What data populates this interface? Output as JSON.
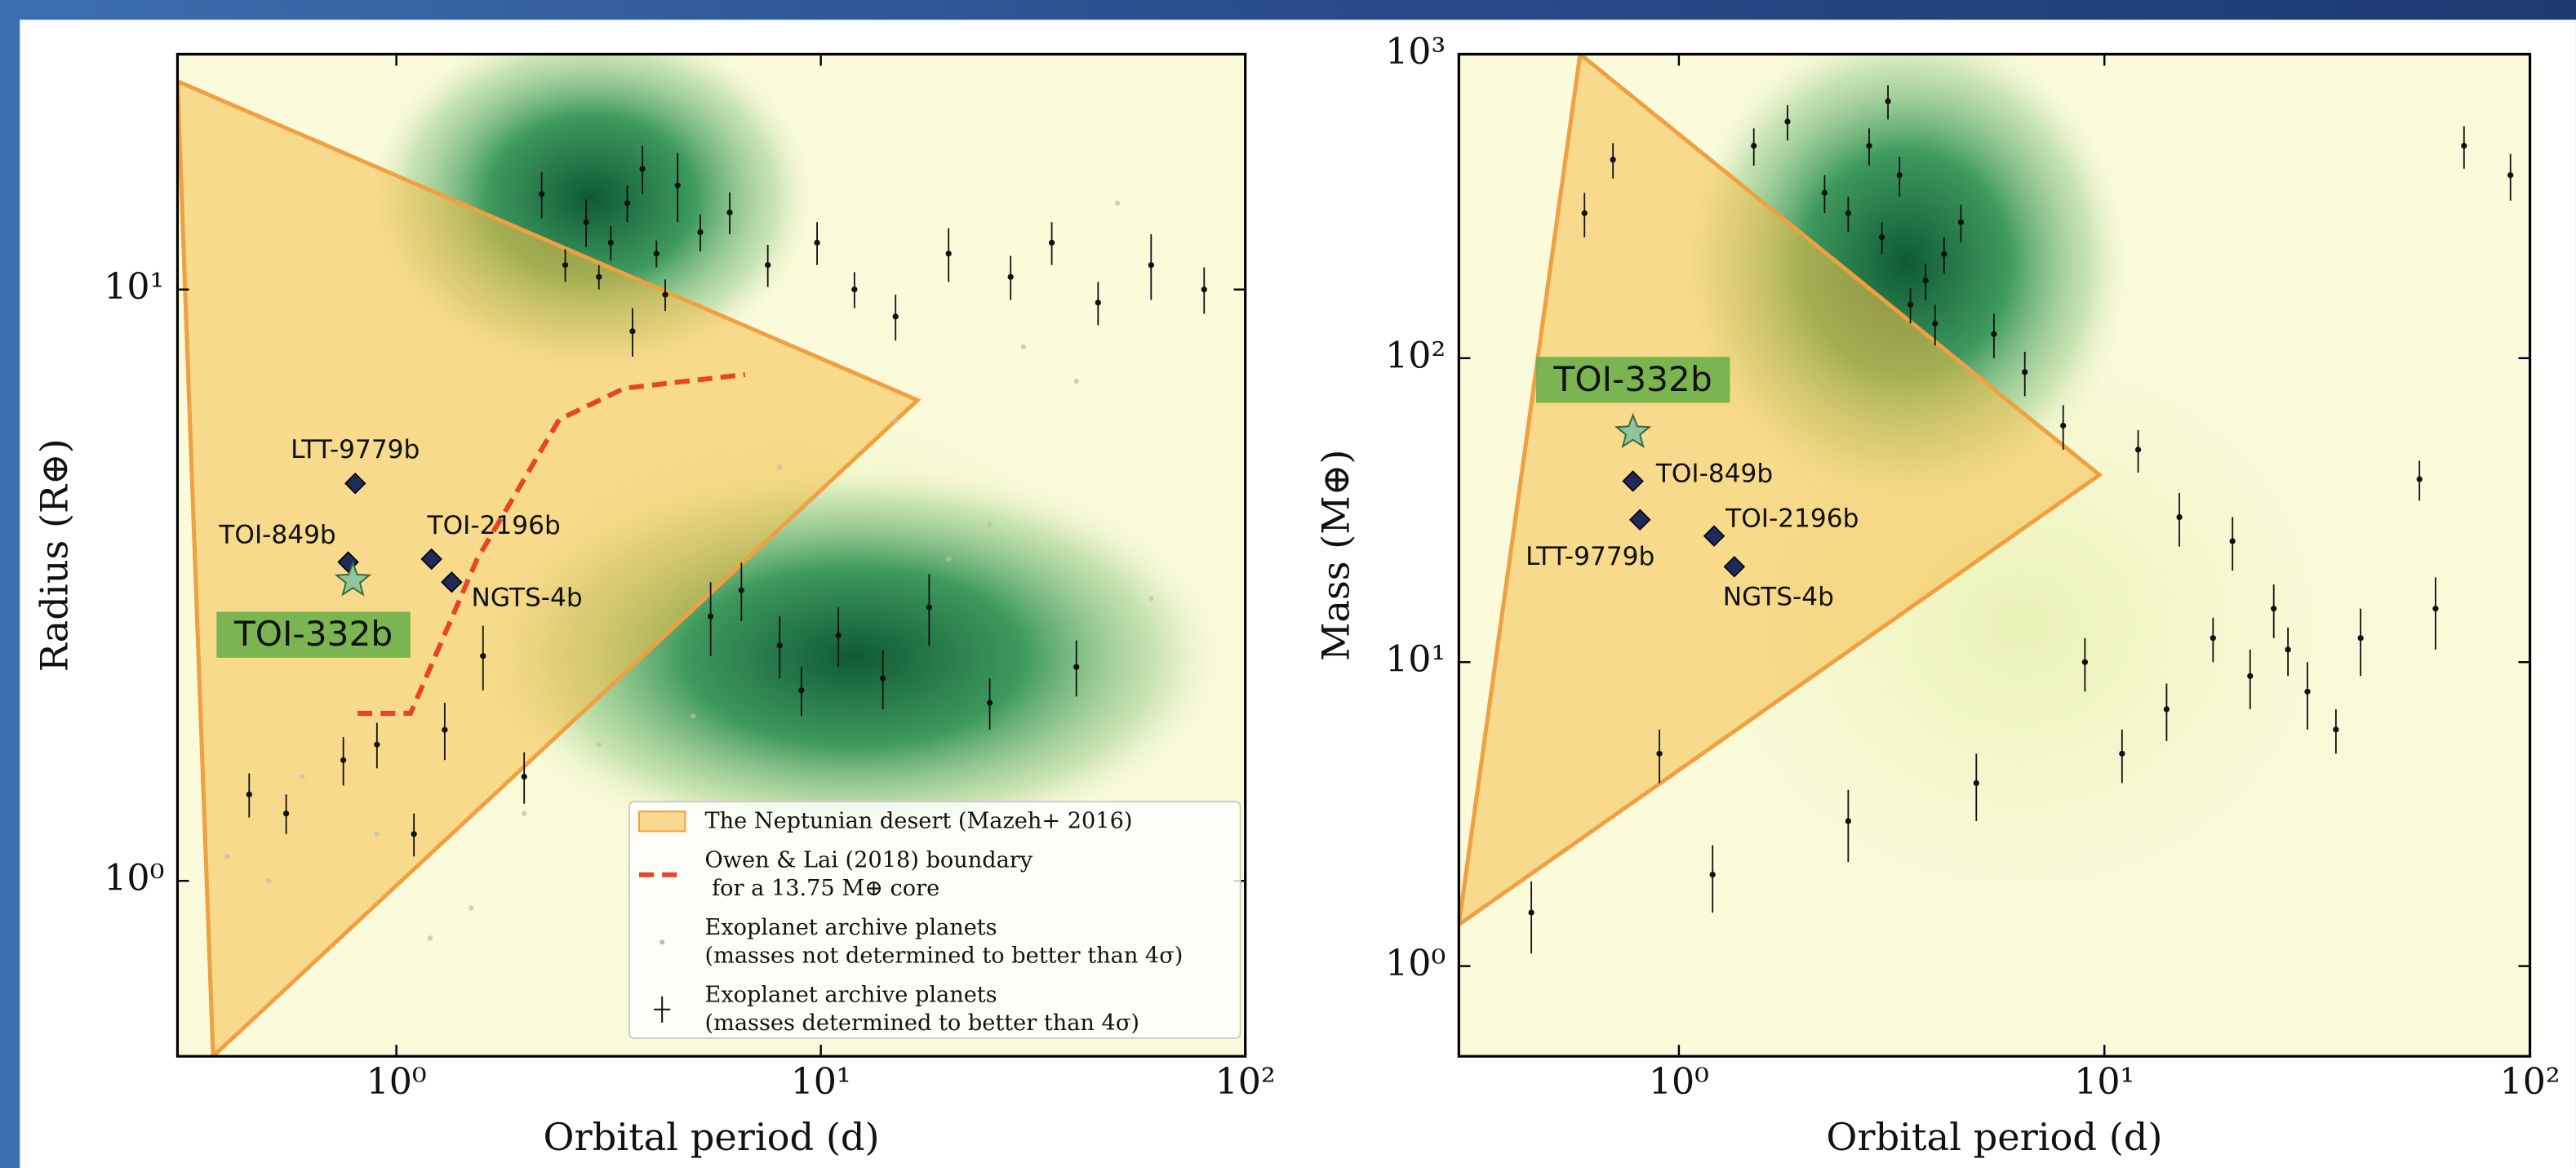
{
  "chart_data": [
    {
      "type": "scatter",
      "xlabel": "Orbital period (d)",
      "ylabel": "Radius (R⊕)",
      "xscale": "log",
      "yscale": "log",
      "xlim": [
        0.305,
        100
      ],
      "ylim": [
        0.505,
        25
      ],
      "xticks": [
        {
          "value": 1,
          "label": "10⁰"
        },
        {
          "value": 10,
          "label": "10¹"
        },
        {
          "value": 100,
          "label": "10²"
        }
      ],
      "yticks": [
        {
          "value": 1,
          "label": "10⁰"
        },
        {
          "value": 10,
          "label": "10¹"
        }
      ],
      "legend": "lower right",
      "regions": [
        {
          "name": "The Neptunian desert (Mazeh+ 2016)",
          "color": "#f5c04a",
          "x": [
            0.305,
            16.9,
            0.37
          ],
          "y": [
            22.5,
            6.5,
            0.505
          ]
        }
      ],
      "lines": [
        {
          "name": "Owen & Lai (2018) boundary\n for a 13.75 M⊕ core",
          "color": "#e8432b",
          "x": [
            0.81,
            1.08,
            1.55,
            2.42,
            3.45,
            6.63
          ],
          "y": [
            1.92,
            1.92,
            3.5,
            6.03,
            6.81,
            7.18
          ]
        }
      ],
      "series": [
        {
          "name": "Exoplanet archive planets\n(masses not determined to better than 4σ)",
          "color": "#bdbdae",
          "x": [
            0.5,
            0.6,
            0.9,
            1.5,
            2,
            3,
            5,
            8,
            15,
            25,
            40,
            60,
            0.4,
            1.2,
            20,
            30,
            50
          ],
          "y": [
            1.0,
            1.5,
            1.2,
            0.9,
            1.3,
            1.7,
            1.9,
            5,
            6,
            4,
            7,
            3,
            1.1,
            0.8,
            3.5,
            8,
            14
          ]
        },
        {
          "name": "Exoplanet archive planets\n(masses determined to better than 4σ)",
          "color": "#111111",
          "x": [
            3.2,
            3.5,
            4.1,
            2.8,
            4.6,
            3.0,
            5.2,
            3.8,
            2.5,
            6.1,
            4.3,
            3.6,
            2.2,
            7.5,
            9.8,
            12,
            15,
            20,
            28,
            35,
            45,
            60,
            80,
            1.3,
            1.6,
            0.9,
            0.55,
            0.45,
            11,
            14,
            18,
            25,
            8,
            6.5,
            40,
            0.75,
            1.1,
            2.0,
            5.5,
            9
          ],
          "y": [
            12,
            14,
            11.5,
            13,
            15,
            10.5,
            12.5,
            16,
            11,
            13.5,
            9.8,
            8.5,
            14.5,
            11,
            12,
            10,
            9,
            11.5,
            10.5,
            12,
            9.5,
            11,
            10,
            1.8,
            2.4,
            1.7,
            1.3,
            1.4,
            2.6,
            2.2,
            2.9,
            2.0,
            2.5,
            3.1,
            2.3,
            1.6,
            1.2,
            1.5,
            2.8,
            2.1
          ],
          "yerr": [
            0.8,
            1.0,
            0.6,
            1.2,
            2.0,
            0.5,
            0.9,
            1.5,
            0.7,
            1.1,
            0.6,
            0.8,
            1.3,
            0.9,
            1.0,
            0.7,
            0.8,
            1.2,
            0.9,
            1.0,
            0.8,
            1.4,
            0.9,
            0.2,
            0.3,
            0.15,
            0.1,
            0.12,
            0.3,
            0.25,
            0.4,
            0.2,
            0.3,
            0.35,
            0.25,
            0.15,
            0.1,
            0.15,
            0.4,
            0.2
          ]
        }
      ],
      "planets": [
        {
          "name": "LTT-9779b",
          "x": 0.8,
          "y": 4.7,
          "marker": "diamond",
          "color": "#1f2a5a"
        },
        {
          "name": "TOI-849b",
          "x": 0.77,
          "y": 3.46,
          "marker": "diamond",
          "color": "#1f2a5a"
        },
        {
          "name": "TOI-332b",
          "x": 0.79,
          "y": 3.22,
          "marker": "star",
          "color": "#8fc79a"
        },
        {
          "name": "TOI-2196b",
          "x": 1.21,
          "y": 3.5,
          "marker": "diamond",
          "color": "#1f2a5a"
        },
        {
          "name": "NGTS-4b",
          "x": 1.35,
          "y": 3.2,
          "marker": "diamond",
          "color": "#1f2a5a"
        }
      ]
    },
    {
      "type": "scatter",
      "xlabel": "Orbital period (d)",
      "ylabel": "Mass (M⊕)",
      "xscale": "log",
      "yscale": "log",
      "xlim": [
        0.304,
        100
      ],
      "ylim": [
        0.505,
        1000
      ],
      "xticks": [
        {
          "value": 1,
          "label": "10⁰"
        },
        {
          "value": 10,
          "label": "10¹"
        },
        {
          "value": 100,
          "label": "10²"
        }
      ],
      "yticks": [
        {
          "value": 1,
          "label": "10⁰"
        },
        {
          "value": 10,
          "label": "10¹"
        },
        {
          "value": 100,
          "label": "10²"
        },
        {
          "value": 1000,
          "label": "10³"
        }
      ],
      "regions": [
        {
          "color": "#f5c04a",
          "x": [
            0.586,
            9.74,
            0.304
          ],
          "y": [
            1000,
            41.3,
            1.37
          ]
        }
      ],
      "lines": [],
      "series": [
        {
          "color": "#111111",
          "x": [
            2.5,
            3.0,
            3.3,
            3.8,
            4.2,
            2.8,
            3.5,
            4.6,
            2.2,
            5.5,
            6.5,
            1.8,
            3.1,
            4.0,
            0.6,
            0.7,
            1.5,
            8,
            12,
            15,
            20,
            25,
            30,
            40,
            55,
            70,
            90,
            9,
            11,
            14,
            18,
            22,
            27,
            35,
            2.5,
            5,
            0.45,
            0.9,
            1.2,
            60
          ],
          "y": [
            300,
            250,
            400,
            180,
            220,
            500,
            150,
            280,
            350,
            120,
            90,
            600,
            700,
            130,
            300,
            450,
            500,
            60,
            50,
            30,
            25,
            15,
            8,
            12,
            40,
            500,
            400,
            10,
            5,
            7,
            12,
            9,
            11,
            6,
            3,
            4,
            1.5,
            5,
            2,
            15
          ],
          "yerr": [
            40,
            30,
            60,
            25,
            30,
            70,
            20,
            40,
            50,
            20,
            15,
            80,
            90,
            20,
            50,
            60,
            70,
            10,
            8,
            6,
            5,
            3,
            2,
            3,
            6,
            80,
            70,
            2,
            1,
            1.5,
            2,
            2,
            2,
            1,
            0.8,
            1,
            0.4,
            1,
            0.5,
            4
          ]
        }
      ],
      "planets": [
        {
          "name": "TOI-332b",
          "x": 0.78,
          "y": 57,
          "marker": "star",
          "color": "#8fc79a"
        },
        {
          "name": "TOI-849b",
          "x": 0.78,
          "y": 39.4,
          "marker": "diamond",
          "color": "#1f2a5a"
        },
        {
          "name": "LTT-9779b",
          "x": 0.81,
          "y": 29.4,
          "marker": "diamond",
          "color": "#1f2a5a"
        },
        {
          "name": "TOI-2196b",
          "x": 1.21,
          "y": 26,
          "marker": "diamond",
          "color": "#1f2a5a"
        },
        {
          "name": "NGTS-4b",
          "x": 1.35,
          "y": 20.6,
          "marker": "diamond",
          "color": "#1f2a5a"
        }
      ]
    }
  ]
}
